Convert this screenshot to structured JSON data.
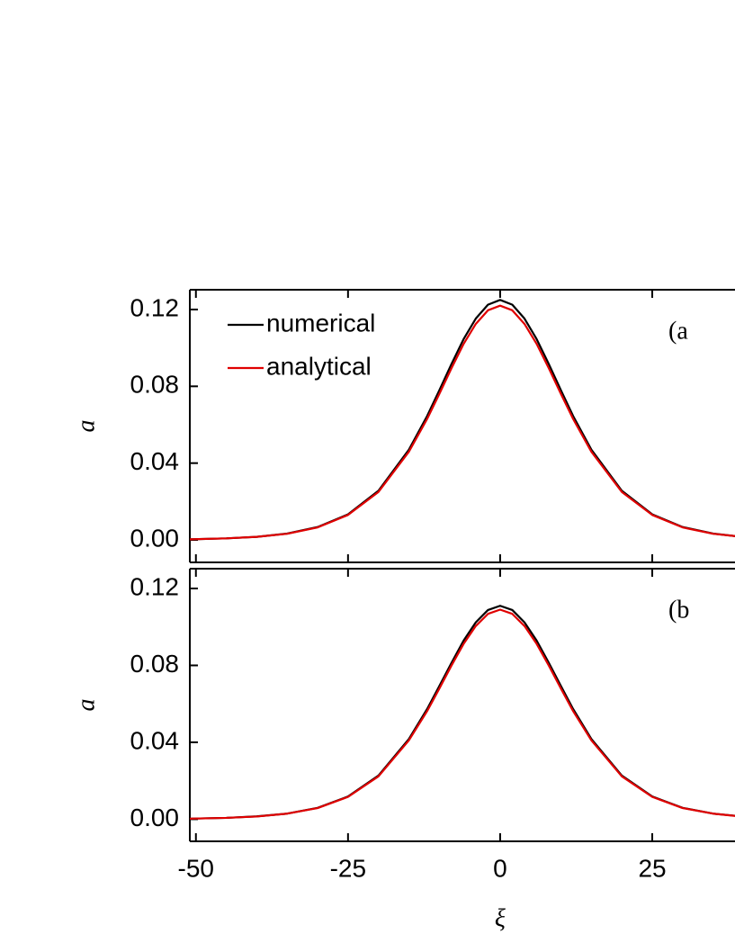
{
  "chart_data": [
    {
      "type": "line",
      "panel_label": "(a",
      "ylabel": "a",
      "legend": "upper left",
      "show_xtick_labels": false,
      "x": [
        -51,
        -45,
        -40,
        -35,
        -30,
        -25,
        -20,
        -15,
        -12,
        -10,
        -8,
        -6,
        -4,
        -2,
        0,
        2,
        4,
        6,
        8,
        10,
        12,
        15,
        20,
        25,
        30,
        35,
        38.6
      ],
      "series": [
        {
          "name": "numerical",
          "color": "#000000",
          "values": [
            0.0003,
            0.0008,
            0.0016,
            0.0033,
            0.0067,
            0.0133,
            0.0256,
            0.047,
            0.0645,
            0.0779,
            0.0916,
            0.1046,
            0.1153,
            0.1225,
            0.125,
            0.1225,
            0.1153,
            0.1046,
            0.0916,
            0.0779,
            0.0645,
            0.047,
            0.0256,
            0.0133,
            0.0067,
            0.0033,
            0.002
          ]
        },
        {
          "name": "analytical",
          "color": "#e00000",
          "values": [
            0.0003,
            0.0008,
            0.0016,
            0.0032,
            0.0065,
            0.013,
            0.025,
            0.0459,
            0.063,
            0.076,
            0.0894,
            0.1021,
            0.1125,
            0.1196,
            0.122,
            0.1196,
            0.1125,
            0.1021,
            0.0894,
            0.076,
            0.063,
            0.0459,
            0.025,
            0.013,
            0.0065,
            0.0032,
            0.002
          ]
        }
      ],
      "xlim": [
        -51,
        38.6
      ],
      "xticks": [
        -50,
        -25,
        0,
        25
      ],
      "ylim": [
        -0.0117,
        0.1303
      ],
      "yticks": [
        {
          "value": 0,
          "label": "0.00"
        },
        {
          "value": 0.04,
          "label": "0.04"
        },
        {
          "value": 0.08,
          "label": "0.08"
        },
        {
          "value": 0.12,
          "label": "0.12"
        }
      ]
    },
    {
      "type": "line",
      "panel_label": "(b",
      "ylabel": "a",
      "xlabel": "ξ",
      "show_xtick_labels": true,
      "x": [
        -51,
        -45,
        -40,
        -35,
        -30,
        -25,
        -20,
        -15,
        -12,
        -10,
        -8,
        -6,
        -4,
        -2,
        0,
        2,
        4,
        6,
        8,
        10,
        12,
        15,
        20,
        25,
        30,
        35,
        38.6
      ],
      "series": [
        {
          "color": "#000000",
          "values": [
            0.0003,
            0.0007,
            0.0015,
            0.0029,
            0.0059,
            0.0118,
            0.0227,
            0.0417,
            0.0573,
            0.0692,
            0.0813,
            0.0929,
            0.1024,
            0.1088,
            0.111,
            0.1088,
            0.1024,
            0.0929,
            0.0813,
            0.0692,
            0.0573,
            0.0417,
            0.0227,
            0.0118,
            0.0059,
            0.0029,
            0.0018
          ]
        },
        {
          "color": "#e00000",
          "values": [
            0.0003,
            0.0007,
            0.0014,
            0.0029,
            0.0058,
            0.0116,
            0.0223,
            0.041,
            0.0562,
            0.0679,
            0.0799,
            0.0912,
            0.1005,
            0.1068,
            0.109,
            0.1068,
            0.1005,
            0.0912,
            0.0799,
            0.0679,
            0.0562,
            0.041,
            0.0223,
            0.0116,
            0.0058,
            0.0029,
            0.0017
          ]
        }
      ],
      "xlim": [
        -51,
        38.6
      ],
      "xticks": [
        -50,
        -25,
        0,
        25
      ],
      "ylim": [
        -0.0115,
        0.1303
      ],
      "yticks": [
        {
          "value": 0,
          "label": "0.00"
        },
        {
          "value": 0.04,
          "label": "0.04"
        },
        {
          "value": 0.08,
          "label": "0.08"
        },
        {
          "value": 0.12,
          "label": "0.12"
        }
      ]
    }
  ]
}
